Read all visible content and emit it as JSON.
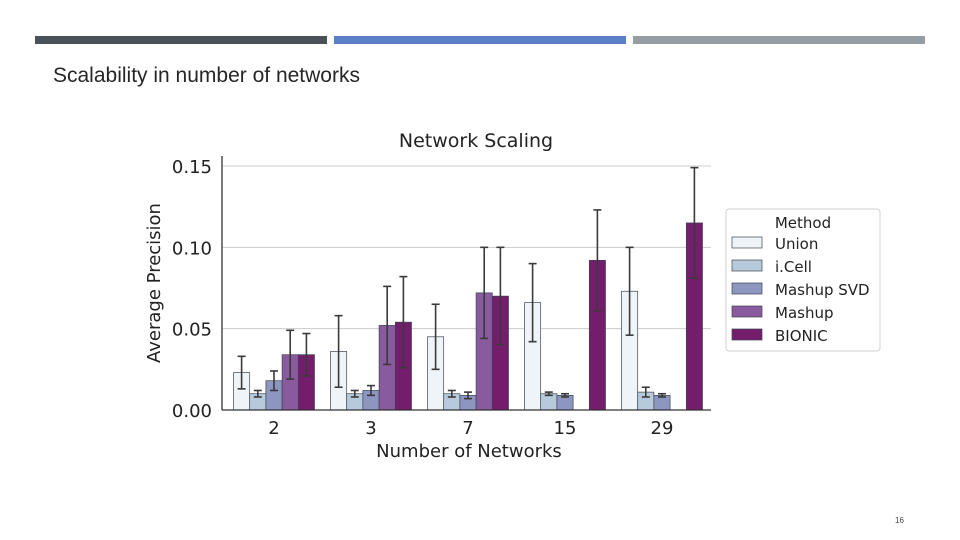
{
  "slide": {
    "title": "Scalability in number of networks",
    "page_number": "16",
    "bar_colors": [
      "#4a5257",
      "#5b7fc4",
      "#969ca3"
    ]
  },
  "chart_data": {
    "type": "bar",
    "title": "Network Scaling",
    "xlabel": "Number of Networks",
    "ylabel": "Average Precision",
    "categories": [
      "2",
      "3",
      "7",
      "15",
      "29"
    ],
    "ylim": [
      0,
      0.15
    ],
    "yticks": [
      "0.00",
      "0.05",
      "0.10",
      "0.15"
    ],
    "grid": true,
    "legend": {
      "title": "Method",
      "position": "right"
    },
    "series": [
      {
        "name": "Union",
        "color": "#eef4f8",
        "values": [
          0.023,
          0.036,
          0.045,
          0.066,
          0.073
        ],
        "err": [
          0.01,
          0.022,
          0.02,
          0.024,
          0.027
        ]
      },
      {
        "name": "i.Cell",
        "color": "#b7cadb",
        "values": [
          0.01,
          0.01,
          0.01,
          0.01,
          0.011
        ],
        "err": [
          0.002,
          0.002,
          0.002,
          0.001,
          0.003
        ]
      },
      {
        "name": "Mashup SVD",
        "color": "#8c96c0",
        "values": [
          0.018,
          0.012,
          0.009,
          0.009,
          0.009
        ],
        "err": [
          0.006,
          0.003,
          0.002,
          0.001,
          0.001
        ]
      },
      {
        "name": "Mashup",
        "color": "#8a5a9e",
        "values": [
          0.034,
          0.052,
          0.072,
          0.0,
          0.0
        ],
        "err": [
          0.015,
          0.024,
          0.028,
          0.0,
          0.0
        ]
      },
      {
        "name": "BIONIC",
        "color": "#741d6c",
        "values": [
          0.034,
          0.054,
          0.07,
          0.092,
          0.115
        ],
        "err": [
          0.013,
          0.028,
          0.03,
          0.031,
          0.034
        ]
      }
    ]
  }
}
